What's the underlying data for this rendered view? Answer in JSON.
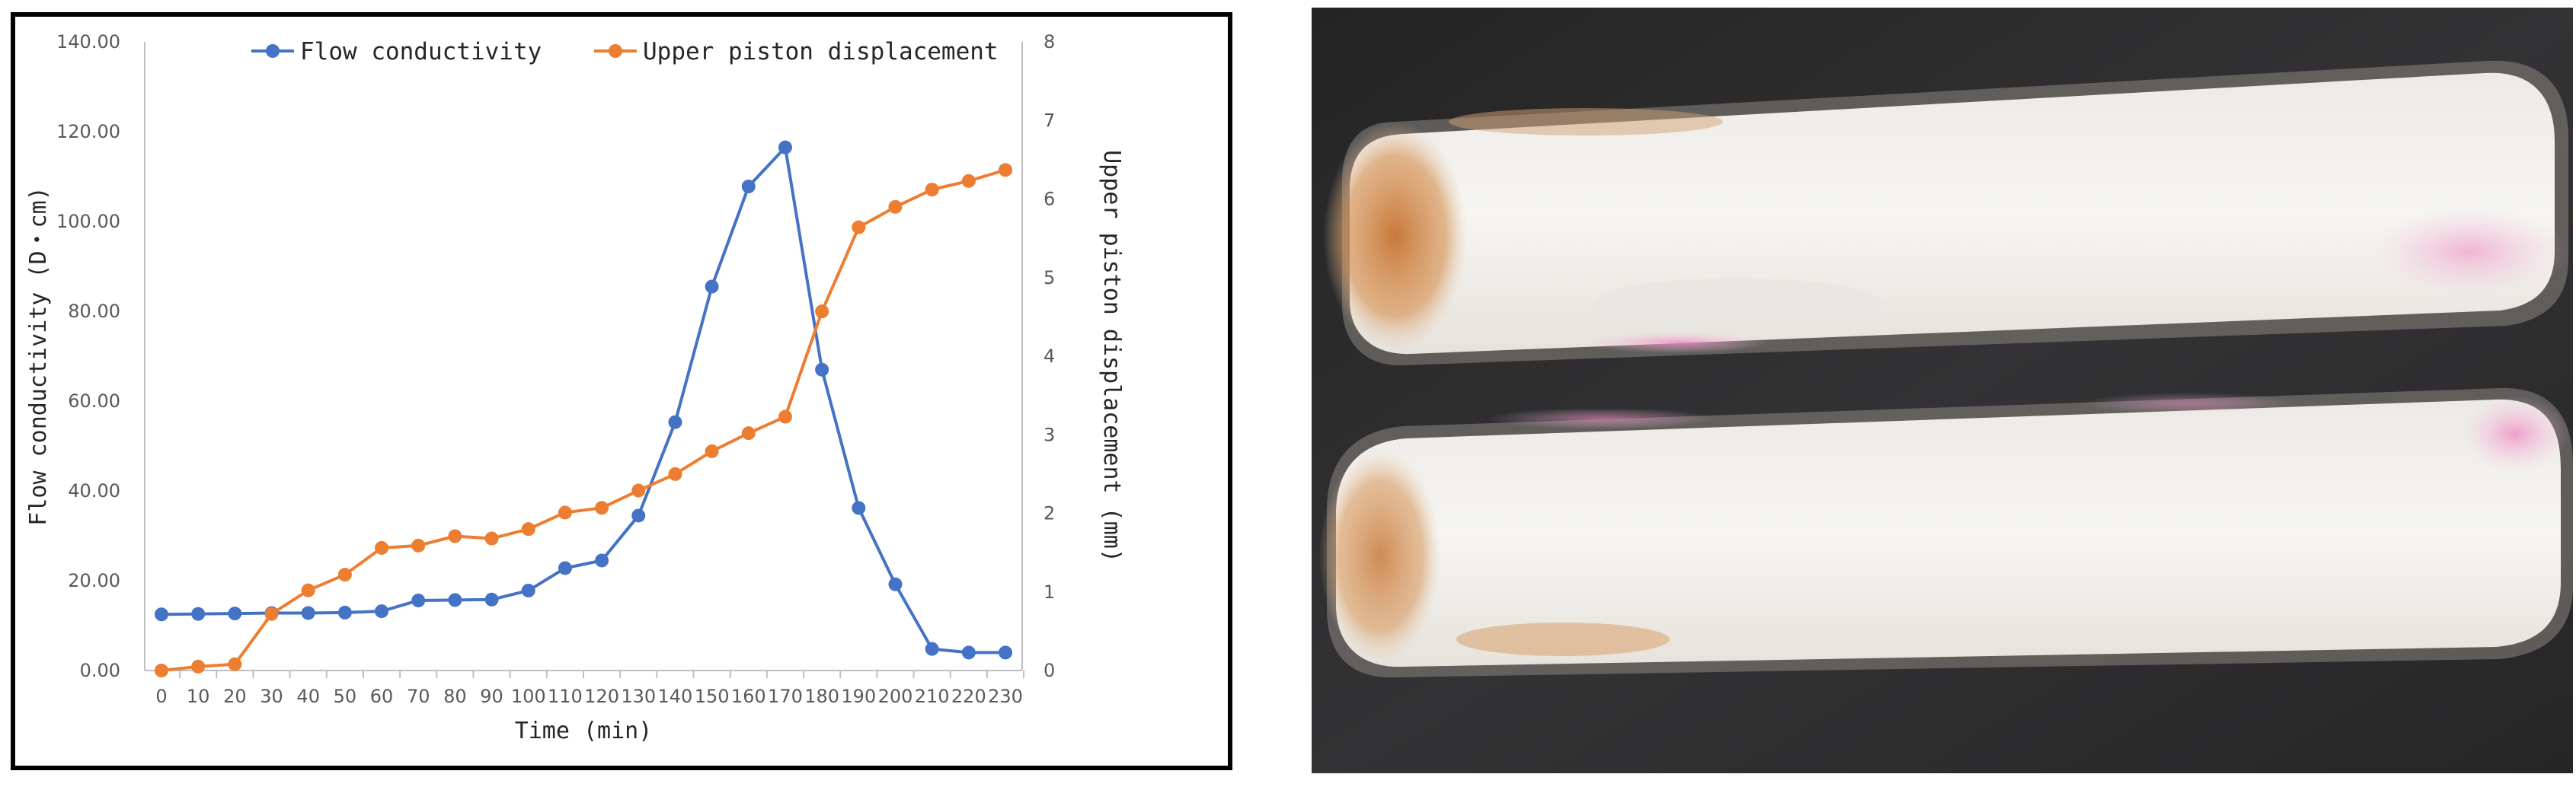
{
  "colors": {
    "flow_series": "#4472C4",
    "piston_series": "#ED7D31",
    "grid": "#D9D9D9",
    "axis": "#BFBFBF",
    "panel_border": "#000000"
  },
  "chart_data": {
    "type": "line",
    "categories": [
      "0",
      "10",
      "20",
      "30",
      "40",
      "50",
      "60",
      "70",
      "80",
      "90",
      "100",
      "110",
      "120",
      "130",
      "140",
      "150",
      "160",
      "170",
      "180",
      "190",
      "200",
      "210",
      "220",
      "230"
    ],
    "xlabel": "Time (min)",
    "ylabel_left": "Flow conductivity (D・cm)",
    "ylabel_right": "Upper piston displacement (mm)",
    "ylim_left": [
      0,
      140
    ],
    "ylim_right": [
      0,
      8
    ],
    "y_ticks_left": [
      "0.00",
      "20.00",
      "40.00",
      "60.00",
      "80.00",
      "100.00",
      "120.00",
      "140.00"
    ],
    "y_ticks_right": [
      "0",
      "1",
      "2",
      "3",
      "4",
      "5",
      "6",
      "7",
      "8"
    ],
    "grid": false,
    "legend_position": "top-center",
    "series": [
      {
        "name": "Flow conductivity",
        "axis": "left",
        "values": [
          12.5,
          12.6,
          12.7,
          12.8,
          12.8,
          12.9,
          13.2,
          15.6,
          15.7,
          15.8,
          17.8,
          22.8,
          24.5,
          34.5,
          55.3,
          85.5,
          107.8,
          116.5,
          67.0,
          36.2,
          19.2,
          4.8,
          4.0,
          4.0
        ]
      },
      {
        "name": "Upper piston displacement",
        "axis": "right",
        "values": [
          0.0,
          0.05,
          0.08,
          0.72,
          1.02,
          1.22,
          1.56,
          1.59,
          1.71,
          1.68,
          1.8,
          2.01,
          2.07,
          2.29,
          2.5,
          2.79,
          3.02,
          3.23,
          4.57,
          5.64,
          5.9,
          6.12,
          6.23,
          6.37
        ]
      }
    ]
  },
  "photo": {
    "icon": "core-sample-photo-icon"
  }
}
